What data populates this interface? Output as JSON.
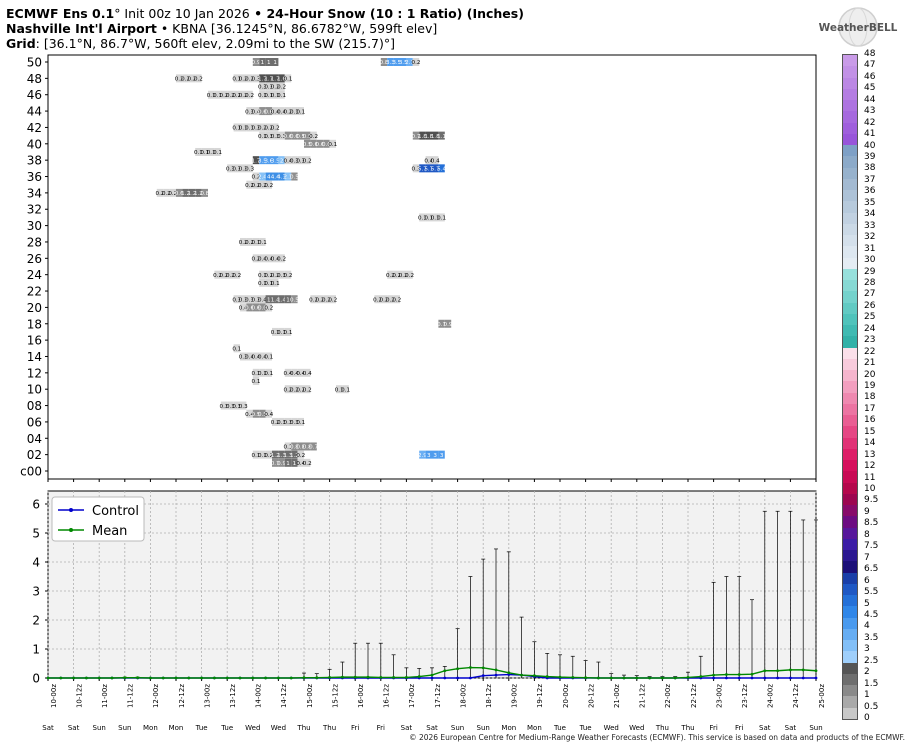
{
  "header": {
    "line1_model": "ECMWF Ens 0.1",
    "line1_deg": "°",
    "line1_init": " Init 00z 10 Jan 2026",
    "line1_sep": " • ",
    "line1_product": "24-Hour Snow (10 : 1 Ratio) (Inches)",
    "line2_site": "Nashville Int'l Airport",
    "line2_rest": " • KBNA [36.1245°N, 86.6782°W, 599ft elev]",
    "line3_label": "Grid",
    "line3_rest": ": [36.1°N, 86.7°W, 560ft elev, 2.09mi to the SW (215.7)°]"
  },
  "logo": {
    "text": "WeatherBELL",
    "icon": "weatherbell-globe-logo"
  },
  "footer": "© 2026 European Centre for Medium-Range Weather Forecasts (ECMWF). This service is based on data and products of the ECMWF.",
  "colorbar": {
    "labels": [
      "48",
      "47",
      "46",
      "45",
      "44",
      "43",
      "42",
      "41",
      "40",
      "39",
      "38",
      "37",
      "36",
      "35",
      "34",
      "33",
      "32",
      "31",
      "30",
      "29",
      "28",
      "27",
      "26",
      "25",
      "24",
      "23",
      "22",
      "21",
      "20",
      "19",
      "18",
      "17",
      "16",
      "15",
      "14",
      "13",
      "12",
      "11",
      "10",
      "9.5",
      "9",
      "8.5",
      "8",
      "7.5",
      "7",
      "6.5",
      "6",
      "5.5",
      "5",
      "4.5",
      "4",
      "3.5",
      "3",
      "2.5",
      "2",
      "1.5",
      "1",
      "0.5",
      "0"
    ],
    "colors": [
      "#c99be8",
      "#c291e6",
      "#bb87e4",
      "#b47de2",
      "#ad73e0",
      "#a669de",
      "#9f5fdc",
      "#9855da",
      "#7ea0c6",
      "#8caac9",
      "#97b2cd",
      "#a3bad2",
      "#adc2d7",
      "#b7cadc",
      "#c1d1e1",
      "#cbd9e6",
      "#d4e0eb",
      "#dde7f0",
      "#e4ecf3",
      "#97e0dc",
      "#86d9d4",
      "#74d2cc",
      "#62cac3",
      "#50c3bb",
      "#40bab2",
      "#33b1a8",
      "#fbe0ea",
      "#f8cbdc",
      "#f5b5cd",
      "#f29fbf",
      "#ef89b0",
      "#ec74a2",
      "#e95e93",
      "#e54784",
      "#e13276",
      "#dd1f68",
      "#d60f5c",
      "#c80a54",
      "#b4084c",
      "#9c0650",
      "#880a6a",
      "#6d0b82",
      "#57179b",
      "#3c1da6",
      "#2a1790",
      "#1b0f78",
      "#1a3fa8",
      "#1f58c4",
      "#2470d8",
      "#2f86e8",
      "#4a9aee",
      "#66adf3",
      "#82bff7",
      "#9fcffb",
      "#555555",
      "#6e6e6e",
      "#8a8a8a",
      "#a9a9a9",
      "#c8c8c8",
      "#ffffff"
    ]
  },
  "chart_data": [
    {
      "type": "heatmap",
      "title": "24-Hour Snow (10 : 1 Ratio) (Inches)",
      "y_labels": [
        "50",
        "48",
        "46",
        "44",
        "42",
        "40",
        "38",
        "36",
        "34",
        "32",
        "30",
        "28",
        "26",
        "24",
        "22",
        "20",
        "18",
        "16",
        "14",
        "12",
        "10",
        "08",
        "06",
        "04",
        "02",
        "c00"
      ],
      "x_labels": [
        "10-00z",
        "10-12z",
        "11-00z",
        "11-12z",
        "12-00z",
        "12-12z",
        "13-00z",
        "13-12z",
        "14-00z",
        "14-12z",
        "15-00z",
        "15-12z",
        "16-00z",
        "16-12z",
        "17-00z",
        "17-12z",
        "18-00z",
        "18-12z",
        "19-00z",
        "19-12z",
        "20-00z",
        "20-12z",
        "21-00z",
        "21-12z",
        "22-00z",
        "22-12z",
        "23-00z",
        "23-12z",
        "24-00z",
        "24-12z",
        "25-00z"
      ],
      "day_labels": [
        "Sat",
        "Sat",
        "Sun",
        "Sun",
        "Mon",
        "Mon",
        "Tue",
        "Tue",
        "Wed",
        "Wed",
        "Thu",
        "Thu",
        "Fri",
        "Fri",
        "Sat",
        "Sat",
        "Sun",
        "Sun",
        "Mon",
        "Mon",
        "Tue",
        "Tue",
        "Wed",
        "Wed",
        "Thu",
        "Thu",
        "Fri",
        "Fri",
        "Sat",
        "Sat",
        "Sun"
      ],
      "x_step_hours": 3,
      "cells": [
        {
          "row": "50",
          "start": 32,
          "values": [
            "0.9",
            "1",
            "1",
            "1"
          ]
        },
        {
          "row": "50",
          "start": 52,
          "values": [
            "0.8",
            "3.3",
            "3.5",
            "3.5",
            "2.7",
            "0.2"
          ]
        },
        {
          "row": "48",
          "start": 20,
          "values": [
            "0.2",
            "0.2",
            "0.2",
            "0.2"
          ]
        },
        {
          "row": "48",
          "start": 29,
          "values": [
            "0.1",
            "0.2",
            "0.2",
            "0.3",
            "1.7",
            "1.7",
            "1.7",
            "1.6",
            "0.1"
          ]
        },
        {
          "row": "47",
          "start": 33,
          "values": [
            "0.3",
            "0.3",
            "0.2",
            "0.2"
          ]
        },
        {
          "row": "46",
          "start": 25,
          "values": [
            "0.1",
            "0.1",
            "0.2",
            "0.2",
            "0.2",
            "0.2",
            "0.2"
          ]
        },
        {
          "row": "46",
          "start": 33,
          "values": [
            "0.1",
            "0.1",
            "0.1",
            "0.1"
          ]
        },
        {
          "row": "44",
          "start": 31,
          "values": [
            "0.3",
            "0.4",
            "0.6",
            "0.6",
            "0.4",
            "0.4",
            "0.2",
            "0.1",
            "0.1"
          ]
        },
        {
          "row": "42",
          "start": 29,
          "values": [
            "0.1",
            "0.1",
            "0.1",
            "0.3",
            "0.2",
            "0.2",
            "0.2"
          ]
        },
        {
          "row": "41",
          "start": 33,
          "values": [
            "0.1",
            "0.3",
            "0.3",
            "0.3",
            "0.6",
            "0.6",
            "0.5",
            "0.5",
            "0.2"
          ]
        },
        {
          "row": "41",
          "start": 57,
          "values": [
            "0.7",
            "1.8",
            "1.8",
            "1.8",
            "1.1"
          ]
        },
        {
          "row": "40",
          "start": 40,
          "values": [
            "0.5",
            "0.6",
            "0.6",
            "0.6",
            "0.1"
          ]
        },
        {
          "row": "39",
          "start": 23,
          "values": [
            "0.1",
            "0.1",
            "0.1",
            "0.1"
          ]
        },
        {
          "row": "38",
          "start": 32,
          "values": [
            "1.7",
            "3.5",
            "3.6",
            "3.5",
            "2",
            "0.4",
            "0.3",
            "0.3",
            "0.2"
          ]
        },
        {
          "row": "38",
          "start": 59,
          "values": [
            "0.4",
            "0.4"
          ]
        },
        {
          "row": "37",
          "start": 28,
          "values": [
            "0.3",
            "0.3",
            "0.3",
            "0.3"
          ]
        },
        {
          "row": "37",
          "start": 57,
          "values": [
            "0.3",
            "5.7",
            "5.7",
            "5.7",
            "5.4"
          ]
        },
        {
          "row": "36",
          "start": 32,
          "values": [
            "0.2",
            "2.4",
            "4",
            "4.4",
            "4.3",
            "2.1",
            "0.5"
          ]
        },
        {
          "row": "35",
          "start": 31,
          "values": [
            "0.2",
            "0.2",
            "0.2",
            "0.2"
          ]
        },
        {
          "row": "34",
          "start": 17,
          "values": [
            "0.2",
            "0.2",
            "0.2",
            "0.6",
            "1.2",
            "1.2",
            "1.2",
            "0.8"
          ]
        },
        {
          "row": "31",
          "start": 58,
          "values": [
            "0.1",
            "0.1",
            "0.1",
            "0.1"
          ]
        },
        {
          "row": "28",
          "start": 30,
          "values": [
            "0.2",
            "0.2",
            "0.1",
            "0.1"
          ]
        },
        {
          "row": "26",
          "start": 32,
          "values": [
            "0.2",
            "0.4",
            "0.4",
            "0.4",
            "0.2"
          ]
        },
        {
          "row": "24",
          "start": 26,
          "values": [
            "0.2",
            "0.2",
            "0.2",
            "0.2"
          ]
        },
        {
          "row": "24",
          "start": 33,
          "values": [
            "0.1",
            "0.2",
            "0.2",
            "0.3",
            "0.2"
          ]
        },
        {
          "row": "24",
          "start": 53,
          "values": [
            "0.2",
            "0.2",
            "0.2",
            "0.2"
          ]
        },
        {
          "row": "23",
          "start": 33,
          "values": [
            "0.1",
            "0.1",
            "0.1"
          ]
        },
        {
          "row": "21",
          "start": 29,
          "values": [
            "0.3",
            "0.3",
            "0.3",
            "0.3",
            "0.4",
            "1",
            "1.4",
            "1.4",
            "1",
            "0.5"
          ]
        },
        {
          "row": "21",
          "start": 41,
          "values": [
            "0.2",
            "0.2",
            "0.2",
            "0.2"
          ]
        },
        {
          "row": "21",
          "start": 51,
          "values": [
            "0.2",
            "0.2",
            "0.2",
            "0.2"
          ]
        },
        {
          "row": "20",
          "start": 30,
          "values": [
            "0.4",
            "0.6",
            "0.6",
            "0.6",
            "0.2"
          ]
        },
        {
          "row": "18",
          "start": 61,
          "values": [
            "0.7",
            "0.9"
          ]
        },
        {
          "row": "17",
          "start": 35,
          "values": [
            "0.1",
            "0.1",
            "0.1"
          ]
        },
        {
          "row": "15",
          "start": 29,
          "values": [
            "0.1"
          ]
        },
        {
          "row": "14",
          "start": 30,
          "values": [
            "0.3",
            "0.4",
            "0.4",
            "0.4",
            "0.1"
          ]
        },
        {
          "row": "12",
          "start": 32,
          "values": [
            "0.1",
            "0.1",
            "0.1"
          ]
        },
        {
          "row": "12",
          "start": 37,
          "values": [
            "0.4",
            "0.4",
            "0.4",
            "0.4"
          ]
        },
        {
          "row": "11",
          "start": 32,
          "values": [
            "0.1"
          ]
        },
        {
          "row": "10",
          "start": 37,
          "values": [
            "0.2",
            "0.2",
            "0.2",
            "0.2"
          ]
        },
        {
          "row": "10",
          "start": 45,
          "values": [
            "0.1",
            "0.1"
          ]
        },
        {
          "row": "08",
          "start": 27,
          "values": [
            "0.3",
            "0.3",
            "0.3",
            "0.3"
          ]
        },
        {
          "row": "07",
          "start": 31,
          "values": [
            "0.4",
            "0.5",
            "0.5",
            "0.4"
          ]
        },
        {
          "row": "06",
          "start": 35,
          "values": [
            "0.2",
            "0.3",
            "0.3",
            "0.3",
            "0.1"
          ]
        },
        {
          "row": "03",
          "start": 37,
          "values": [
            "0.1",
            "0.8",
            "0.8",
            "0.8",
            "0.7"
          ]
        },
        {
          "row": "02",
          "start": 32,
          "values": [
            "0.1",
            "0.1",
            "0.2",
            "1.2",
            "1.3",
            "1.3",
            "1.2",
            "0.2"
          ]
        },
        {
          "row": "02",
          "start": 58,
          "values": [
            "2.9",
            "3",
            "3",
            "3"
          ]
        },
        {
          "row": "01",
          "start": 35,
          "values": [
            "0.7",
            "0.9",
            "1",
            "1",
            "0.4",
            "0.2"
          ]
        }
      ]
    },
    {
      "type": "line",
      "x_labels": [
        "10-00z",
        "10-12z",
        "11-00z",
        "11-12z",
        "12-00z",
        "12-12z",
        "13-00z",
        "13-12z",
        "14-00z",
        "14-12z",
        "15-00z",
        "15-12z",
        "16-00z",
        "16-12z",
        "17-00z",
        "17-12z",
        "18-00z",
        "18-12z",
        "19-00z",
        "19-12z",
        "20-00z",
        "20-12z",
        "21-00z",
        "21-12z",
        "22-00z",
        "22-12z",
        "23-00z",
        "23-12z",
        "24-00z",
        "24-12z",
        "25-00z"
      ],
      "day_labels": [
        "Sat",
        "Sat",
        "Sun",
        "Sun",
        "Mon",
        "Mon",
        "Tue",
        "Tue",
        "Wed",
        "Wed",
        "Thu",
        "Thu",
        "Fri",
        "Fri",
        "Sat",
        "Sat",
        "Sun",
        "Sun",
        "Mon",
        "Mon",
        "Tue",
        "Tue",
        "Wed",
        "Wed",
        "Thu",
        "Thu",
        "Fri",
        "Fri",
        "Sat",
        "Sat",
        "Sun"
      ],
      "ylim": [
        0,
        6
      ],
      "yticks": [
        "0",
        "1",
        "2",
        "3",
        "4",
        "5",
        "6"
      ],
      "grid": true,
      "legend_position": "top-left",
      "series": [
        {
          "name": "Control",
          "color": "#0000cc",
          "x_step_hours": 6,
          "values": [
            0,
            0,
            0,
            0,
            0,
            0,
            0,
            0,
            0,
            0,
            0,
            0,
            0,
            0,
            0,
            0,
            0,
            0,
            0,
            0,
            0,
            0,
            0,
            0,
            0,
            0,
            0,
            0,
            0,
            0,
            0,
            0,
            0,
            0,
            0.08,
            0.1,
            0.12,
            0.1,
            0.05,
            0,
            0,
            0,
            0,
            0,
            0,
            0,
            0,
            0,
            0,
            0,
            0,
            0,
            0,
            0,
            0,
            0,
            0,
            0,
            0,
            0,
            0
          ]
        },
        {
          "name": "Mean",
          "color": "#008800",
          "x_step_hours": 6,
          "values": [
            0,
            0,
            0,
            0,
            0,
            0,
            0.01,
            0.01,
            0,
            0,
            0,
            0,
            0,
            0,
            0,
            0,
            0,
            0,
            0,
            0,
            0.01,
            0.01,
            0.02,
            0.03,
            0.03,
            0.03,
            0.02,
            0.02,
            0.02,
            0.05,
            0.1,
            0.25,
            0.32,
            0.36,
            0.35,
            0.28,
            0.18,
            0.1,
            0.08,
            0.05,
            0.03,
            0.02,
            0.01,
            0,
            0,
            0,
            0,
            0,
            0,
            0,
            0.02,
            0.05,
            0.1,
            0.12,
            0.12,
            0.13,
            0.25,
            0.25,
            0.28,
            0.28,
            0.25
          ]
        }
      ],
      "whiskers": {
        "x_step_hours": 6,
        "max_values": [
          0,
          0,
          0,
          0,
          0,
          0,
          0.03,
          0.03,
          0,
          0,
          0,
          0,
          0,
          0,
          0,
          0,
          0,
          0,
          0,
          0,
          0.17,
          0.15,
          0.3,
          0.55,
          1.2,
          1.2,
          1.2,
          0.8,
          0.35,
          0.33,
          0.35,
          0.4,
          1.7,
          3.5,
          4.1,
          4.45,
          4.35,
          2.1,
          1.25,
          0.85,
          0.8,
          0.75,
          0.6,
          0.55,
          0.15,
          0.1,
          0.08,
          0.05,
          0.05,
          0.05,
          0.2,
          0.75,
          3.3,
          3.5,
          3.5,
          2.7,
          5.75,
          5.75,
          5.75,
          5.45,
          5.45
        ]
      }
    }
  ]
}
